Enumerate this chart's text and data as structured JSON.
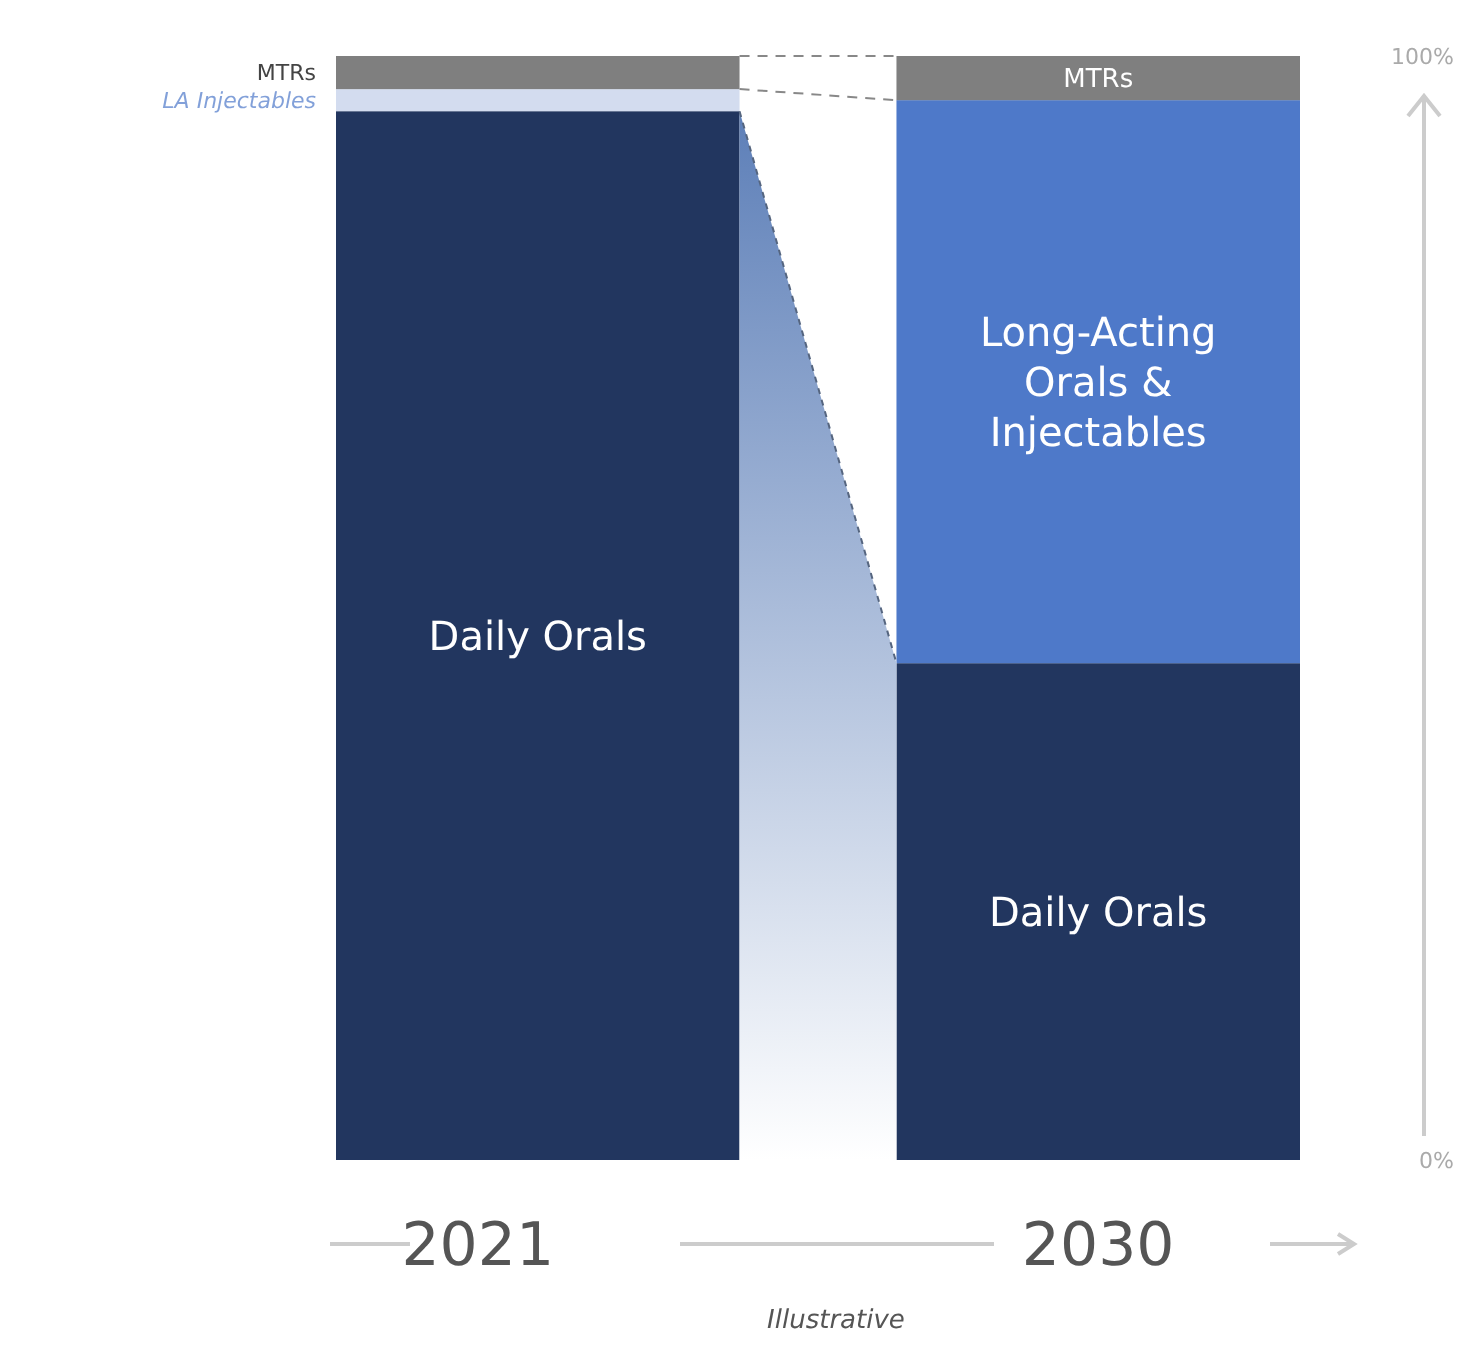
{
  "chart_data": {
    "type": "bar",
    "stacked": true,
    "categories": [
      "2021",
      "2030"
    ],
    "series": [
      {
        "name": "Daily Orals",
        "color": "#22365f",
        "values": [
          95,
          45
        ]
      },
      {
        "name": "Long-Acting Orals & Injectables",
        "color": "#4e79c9",
        "colors": [
          "#d3dcef",
          "#4e79c9"
        ],
        "values": [
          2,
          51
        ]
      },
      {
        "name": "MTRs",
        "color": "#7f7f7f",
        "values": [
          3,
          4
        ]
      }
    ],
    "ylim": [
      0,
      100
    ],
    "yticks": [
      {
        "value": 0,
        "label": "0%"
      },
      {
        "value": 100,
        "label": "100%"
      }
    ],
    "annotations": [
      "LA Injectables",
      "Illustrative"
    ]
  }
}
